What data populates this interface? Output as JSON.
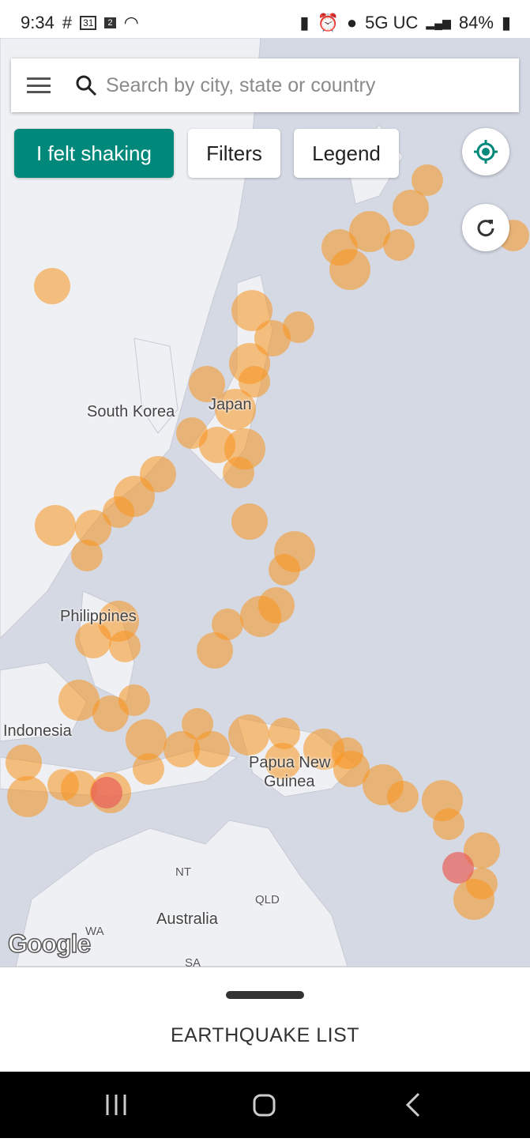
{
  "status_bar": {
    "time": "9:34",
    "network": "5G UC",
    "battery": "84%",
    "left_icons": [
      "slack-icon",
      "calendar-icon",
      "notification-icon",
      "wifi-icon"
    ],
    "right_icons": [
      "battery-saver-icon",
      "alarm-icon",
      "location-icon",
      "signal-icon",
      "battery-icon"
    ]
  },
  "search": {
    "placeholder": "Search by city, state or country"
  },
  "buttons": {
    "felt": "I felt shaking",
    "filters": "Filters",
    "legend": "Legend"
  },
  "map": {
    "labels": {
      "south_korea": "South Korea",
      "japan": "Japan",
      "philippines": "Philippines",
      "indonesia": "Indonesia",
      "png1": "Papua New",
      "png2": "Guinea",
      "australia": "Australia",
      "nt": "NT",
      "qld": "QLD",
      "wa": "WA",
      "sa": "SA"
    },
    "attribution": "Google"
  },
  "colors": {
    "accent": "#00897b",
    "quake": "#f7941d",
    "quake_strong": "#e8605a",
    "land": "#eef0f4",
    "water": "#d5d9e4"
  },
  "sheet": {
    "title": "EARTHQUAKE LIST"
  }
}
